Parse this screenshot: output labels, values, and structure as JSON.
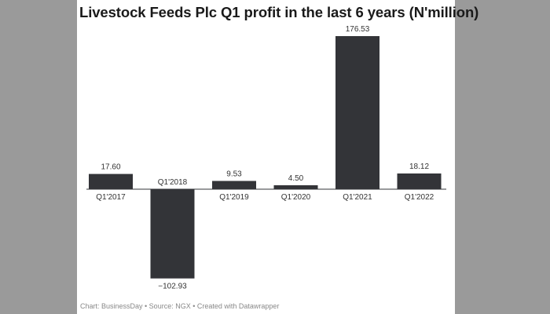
{
  "chart_data": {
    "type": "bar",
    "title": "Livestock Feeds Plc Q1 profit in the last 6 years (N'million)",
    "categories": [
      "Q1'2017",
      "Q1'2018",
      "Q1'2019",
      "Q1'2020",
      "Q1'2021",
      "Q1'2022"
    ],
    "values": [
      17.6,
      -102.93,
      9.53,
      4.5,
      176.53,
      18.12
    ],
    "value_labels": [
      "17.60",
      "−102.93",
      "9.53",
      "4.50",
      "176.53",
      "18.12"
    ],
    "xlabel": "",
    "ylabel": "",
    "ylim": [
      -102.93,
      176.53
    ],
    "grid": false,
    "bar_color": "#333438"
  },
  "footer": {
    "source_text": "Chart: BusinessDay • Source: NGX • Created with Datawrapper"
  }
}
